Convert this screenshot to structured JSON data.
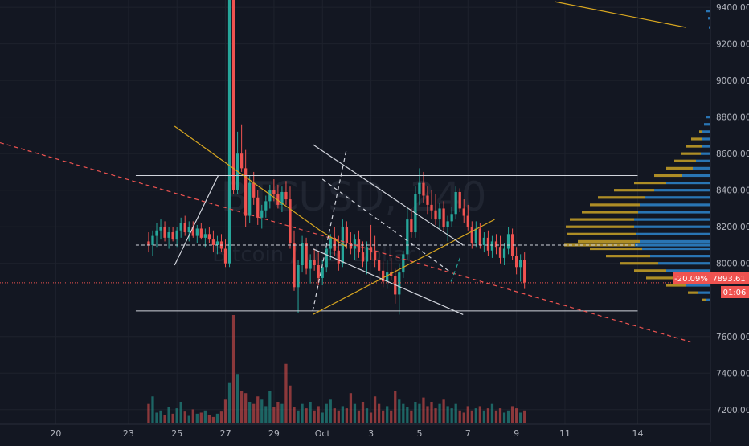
{
  "watermark": {
    "symbol": "BTCUSD, 240",
    "subtitle": "Bitcoin / U.S. Dollar"
  },
  "price_badges": {
    "change": "-20.09%",
    "last_price": "7893.61",
    "countdown": "01:06"
  },
  "colors": {
    "background": "#131722",
    "bull": "#26a69a",
    "bear": "#ef5350",
    "fib_yellow": "#d6a520",
    "profile_gold": "#c9a227",
    "profile_blue": "#2c7fc4",
    "trend_white": "#d1d4dc"
  },
  "chart_data": {
    "type": "candlestick",
    "symbol": "BTCUSD",
    "interval": "240",
    "y_axis": {
      "position": "right",
      "ticks": [
        9400,
        9200,
        9000,
        8800,
        8600,
        8400,
        8200,
        8000,
        7600,
        7400,
        7200
      ],
      "tick_labels": [
        "9400.00",
        "9200.00",
        "9000.00",
        "8800.00",
        "8600.00",
        "8400.00",
        "8200.00",
        "8000.00",
        "7600.00",
        "7400.00",
        "7200.00"
      ],
      "range": [
        7120,
        9440
      ]
    },
    "x_axis": {
      "day_range": [
        17.7,
        47.0
      ],
      "ticks": [
        {
          "day": 20,
          "label": "20"
        },
        {
          "day": 23,
          "label": "23"
        },
        {
          "day": 25,
          "label": "25"
        },
        {
          "day": 27,
          "label": "27"
        },
        {
          "day": 29,
          "label": "29"
        },
        {
          "day": 31,
          "label": "Oct"
        },
        {
          "day": 33,
          "label": "3"
        },
        {
          "day": 35,
          "label": "5"
        },
        {
          "day": 37,
          "label": "7"
        },
        {
          "day": 39,
          "label": "9"
        },
        {
          "day": 41,
          "label": "11"
        },
        {
          "day": 44,
          "label": "14"
        }
      ]
    },
    "candles": {
      "start_day": 23.83,
      "step_days": 0.1667,
      "ohlc": [
        [
          8120,
          8170,
          8060,
          8100
        ],
        [
          8100,
          8180,
          8040,
          8150
        ],
        [
          8150,
          8220,
          8090,
          8180
        ],
        [
          8180,
          8240,
          8130,
          8200
        ],
        [
          8200,
          8230,
          8120,
          8140
        ],
        [
          8140,
          8200,
          8080,
          8170
        ],
        [
          8170,
          8200,
          8120,
          8130
        ],
        [
          8130,
          8200,
          8090,
          8180
        ],
        [
          8180,
          8250,
          8140,
          8220
        ],
        [
          8220,
          8260,
          8150,
          8170
        ],
        [
          8170,
          8230,
          8120,
          8200
        ],
        [
          8200,
          8230,
          8140,
          8150
        ],
        [
          8150,
          8210,
          8110,
          8190
        ],
        [
          8190,
          8220,
          8130,
          8140
        ],
        [
          8140,
          8190,
          8090,
          8160
        ],
        [
          8160,
          8200,
          8110,
          8130
        ],
        [
          8130,
          8180,
          8060,
          8100
        ],
        [
          8100,
          8150,
          8050,
          8120
        ],
        [
          8120,
          8160,
          8060,
          8080
        ],
        [
          8080,
          8130,
          7980,
          8000
        ],
        [
          8000,
          9440,
          7980,
          9440
        ],
        [
          9440,
          9440,
          8380,
          8400
        ],
        [
          8400,
          8720,
          8380,
          8600
        ],
        [
          8600,
          8760,
          8500,
          8520
        ],
        [
          8520,
          8620,
          8200,
          8260
        ],
        [
          8260,
          8480,
          8220,
          8440
        ],
        [
          8440,
          8500,
          8320,
          8360
        ],
        [
          8360,
          8400,
          8210,
          8250
        ],
        [
          8250,
          8320,
          8190,
          8290
        ],
        [
          8290,
          8370,
          8250,
          8340
        ],
        [
          8340,
          8430,
          8300,
          8400
        ],
        [
          8400,
          8460,
          8340,
          8380
        ],
        [
          8380,
          8430,
          8300,
          8320
        ],
        [
          8320,
          8420,
          8280,
          8390
        ],
        [
          8390,
          8450,
          8320,
          8350
        ],
        [
          8350,
          8420,
          8080,
          8110
        ],
        [
          8110,
          8180,
          7850,
          7870
        ],
        [
          7870,
          8020,
          7730,
          7990
        ],
        [
          7990,
          8150,
          7950,
          8110
        ],
        [
          8110,
          8140,
          7940,
          7970
        ],
        [
          7970,
          8050,
          7890,
          8020
        ],
        [
          8020,
          8080,
          7960,
          7990
        ],
        [
          7990,
          8060,
          7880,
          7920
        ],
        [
          7920,
          8020,
          7880,
          7980
        ],
        [
          7980,
          8110,
          7950,
          8080
        ],
        [
          8080,
          8160,
          8020,
          8140
        ],
        [
          8140,
          8200,
          8040,
          8070
        ],
        [
          8070,
          8150,
          7960,
          8000
        ],
        [
          8000,
          8240,
          7980,
          8200
        ],
        [
          8200,
          8230,
          8080,
          8110
        ],
        [
          8110,
          8170,
          8050,
          8080
        ],
        [
          8080,
          8160,
          8020,
          8130
        ],
        [
          8130,
          8180,
          8030,
          8060
        ],
        [
          8060,
          8120,
          7980,
          8010
        ],
        [
          8010,
          8120,
          7940,
          8090
        ],
        [
          8090,
          8210,
          8020,
          8060
        ],
        [
          8060,
          8150,
          7980,
          8020
        ],
        [
          8020,
          8060,
          7900,
          7960
        ],
        [
          7960,
          8010,
          7870,
          7900
        ],
        [
          7900,
          8020,
          7860,
          7950
        ],
        [
          7950,
          8030,
          7910,
          7930
        ],
        [
          7930,
          7970,
          7780,
          7830
        ],
        [
          7830,
          8000,
          7720,
          7950
        ],
        [
          7950,
          8070,
          7920,
          8050
        ],
        [
          8050,
          8300,
          8020,
          8240
        ],
        [
          8240,
          8300,
          8140,
          8170
        ],
        [
          8170,
          8420,
          8140,
          8380
        ],
        [
          8380,
          8520,
          8320,
          8440
        ],
        [
          8440,
          8500,
          8330,
          8370
        ],
        [
          8370,
          8420,
          8270,
          8320
        ],
        [
          8320,
          8400,
          8240,
          8290
        ],
        [
          8290,
          8380,
          8210,
          8240
        ],
        [
          8240,
          8330,
          8190,
          8300
        ],
        [
          8300,
          8340,
          8180,
          8200
        ],
        [
          8200,
          8260,
          8120,
          8230
        ],
        [
          8230,
          8310,
          8200,
          8270
        ],
        [
          8270,
          8420,
          8240,
          8390
        ],
        [
          8390,
          8410,
          8280,
          8300
        ],
        [
          8300,
          8350,
          8220,
          8260
        ],
        [
          8260,
          8320,
          8180,
          8200
        ],
        [
          8200,
          8230,
          8080,
          8110
        ],
        [
          8110,
          8230,
          8090,
          8190
        ],
        [
          8190,
          8220,
          8080,
          8100
        ],
        [
          8100,
          8170,
          8060,
          8140
        ],
        [
          8140,
          8180,
          8040,
          8070
        ],
        [
          8070,
          8150,
          8030,
          8120
        ],
        [
          8120,
          8160,
          8050,
          8090
        ],
        [
          8090,
          8150,
          8000,
          8030
        ],
        [
          8030,
          8110,
          7990,
          8080
        ],
        [
          8080,
          8200,
          8050,
          8160
        ],
        [
          8160,
          8190,
          8020,
          8040
        ],
        [
          8040,
          8090,
          7940,
          7980
        ],
        [
          7980,
          8050,
          7900,
          8020
        ],
        [
          8020,
          8060,
          7860,
          7895
        ]
      ]
    },
    "volume": {
      "max_value": 100,
      "values": [
        18,
        25,
        10,
        12,
        8,
        15,
        9,
        14,
        20,
        11,
        7,
        13,
        9,
        10,
        12,
        8,
        6,
        9,
        11,
        22,
        38,
        100,
        45,
        30,
        28,
        20,
        18,
        25,
        22,
        16,
        30,
        15,
        20,
        18,
        55,
        35,
        15,
        12,
        18,
        14,
        20,
        12,
        16,
        10,
        18,
        22,
        14,
        12,
        16,
        14,
        28,
        18,
        12,
        20,
        14,
        10,
        25,
        18,
        12,
        16,
        12,
        30,
        22,
        18,
        15,
        12,
        20,
        18,
        24,
        16,
        20,
        14,
        18,
        22,
        16,
        14,
        18,
        12,
        10,
        16,
        12,
        14,
        16,
        12,
        14,
        18,
        12,
        14,
        10,
        12,
        16,
        14,
        10,
        12
      ]
    },
    "volume_profile": [
      {
        "price": 9380,
        "gold": 5,
        "blue": 5
      },
      {
        "price": 9340,
        "gold": 3,
        "blue": 3
      },
      {
        "price": 9290,
        "gold": 2,
        "blue": 2
      },
      {
        "price": 8800,
        "gold": 2,
        "blue": 6
      },
      {
        "price": 8760,
        "gold": 6,
        "blue": 8
      },
      {
        "price": 8720,
        "gold": 14,
        "blue": 10
      },
      {
        "price": 8680,
        "gold": 24,
        "blue": 10
      },
      {
        "price": 8640,
        "gold": 30,
        "blue": 10
      },
      {
        "price": 8600,
        "gold": 36,
        "blue": 12
      },
      {
        "price": 8560,
        "gold": 45,
        "blue": 18
      },
      {
        "price": 8520,
        "gold": 55,
        "blue": 22
      },
      {
        "price": 8480,
        "gold": 70,
        "blue": 35
      },
      {
        "price": 8440,
        "gold": 95,
        "blue": 55
      },
      {
        "price": 8400,
        "gold": 120,
        "blue": 70
      },
      {
        "price": 8360,
        "gold": 140,
        "blue": 82
      },
      {
        "price": 8320,
        "gold": 150,
        "blue": 88
      },
      {
        "price": 8280,
        "gold": 160,
        "blue": 90
      },
      {
        "price": 8240,
        "gold": 175,
        "blue": 95
      },
      {
        "price": 8200,
        "gold": 180,
        "blue": 95
      },
      {
        "price": 8160,
        "gold": 178,
        "blue": 92
      },
      {
        "price": 8120,
        "gold": 165,
        "blue": 88
      },
      {
        "price": 8100,
        "gold": 182,
        "blue": 94
      },
      {
        "price": 8080,
        "gold": 150,
        "blue": 85
      },
      {
        "price": 8040,
        "gold": 130,
        "blue": 75
      },
      {
        "price": 8000,
        "gold": 112,
        "blue": 65
      },
      {
        "price": 7960,
        "gold": 95,
        "blue": 55
      },
      {
        "price": 7920,
        "gold": 80,
        "blue": 42
      },
      {
        "price": 7880,
        "gold": 55,
        "blue": 30
      },
      {
        "price": 7840,
        "gold": 28,
        "blue": 15
      },
      {
        "price": 7800,
        "gold": 10,
        "blue": 6
      }
    ],
    "drawings": {
      "horizontal_lines": [
        {
          "price": 8480,
          "style": "solid",
          "color": "#d1d4dc",
          "from_day": 23.3,
          "to_day": 44.0
        },
        {
          "price": 7740,
          "style": "solid",
          "color": "#d1d4dc",
          "from_day": 23.3,
          "to_day": 44.0
        },
        {
          "price": 8100,
          "style": "dashed",
          "color": "#d1d4dc",
          "from_day": 23.3,
          "to_day": 44.0
        },
        {
          "price": 7893.61,
          "style": "dotted",
          "color": "#ef5350",
          "from_day": 17.7,
          "to_day": 46.2
        }
      ],
      "trend_lines": [
        {
          "from": [
            17.7,
            8660
          ],
          "to": [
            46.2,
            7570
          ],
          "color": "#ef5350",
          "style": "dashed"
        },
        {
          "from": [
            24.9,
            8750
          ],
          "to": [
            30.9,
            8180
          ],
          "color": "#d6a520",
          "style": "solid"
        },
        {
          "from": [
            30.9,
            8180
          ],
          "to": [
            32.0,
            8090
          ],
          "color": "#d6a520",
          "style": "solid"
        },
        {
          "from": [
            30.6,
            7720
          ],
          "to": [
            38.1,
            8240
          ],
          "color": "#d6a520",
          "style": "solid"
        },
        {
          "from": [
            40.6,
            9430
          ],
          "to": [
            46.0,
            9290
          ],
          "color": "#d6a520",
          "style": "solid"
        },
        {
          "from": [
            24.9,
            7990
          ],
          "to": [
            26.7,
            8480
          ],
          "color": "#d1d4dc",
          "style": "solid"
        },
        {
          "from": [
            30.6,
            8650
          ],
          "to": [
            36.8,
            8100
          ],
          "color": "#d1d4dc",
          "style": "solid"
        },
        {
          "from": [
            30.6,
            8080
          ],
          "to": [
            36.8,
            7720
          ],
          "color": "#d1d4dc",
          "style": "solid"
        },
        {
          "from": [
            30.6,
            7740
          ],
          "to": [
            32.0,
            8630
          ],
          "color": "#d1d4dc",
          "style": "dashed"
        },
        {
          "from": [
            31.0,
            8460
          ],
          "to": [
            36.3,
            7950
          ],
          "color": "#d1d4dc",
          "style": "dashed"
        },
        {
          "from": [
            36.3,
            7900
          ],
          "to": [
            36.7,
            8040
          ],
          "color": "#26a69a",
          "style": "dashed"
        }
      ]
    }
  }
}
